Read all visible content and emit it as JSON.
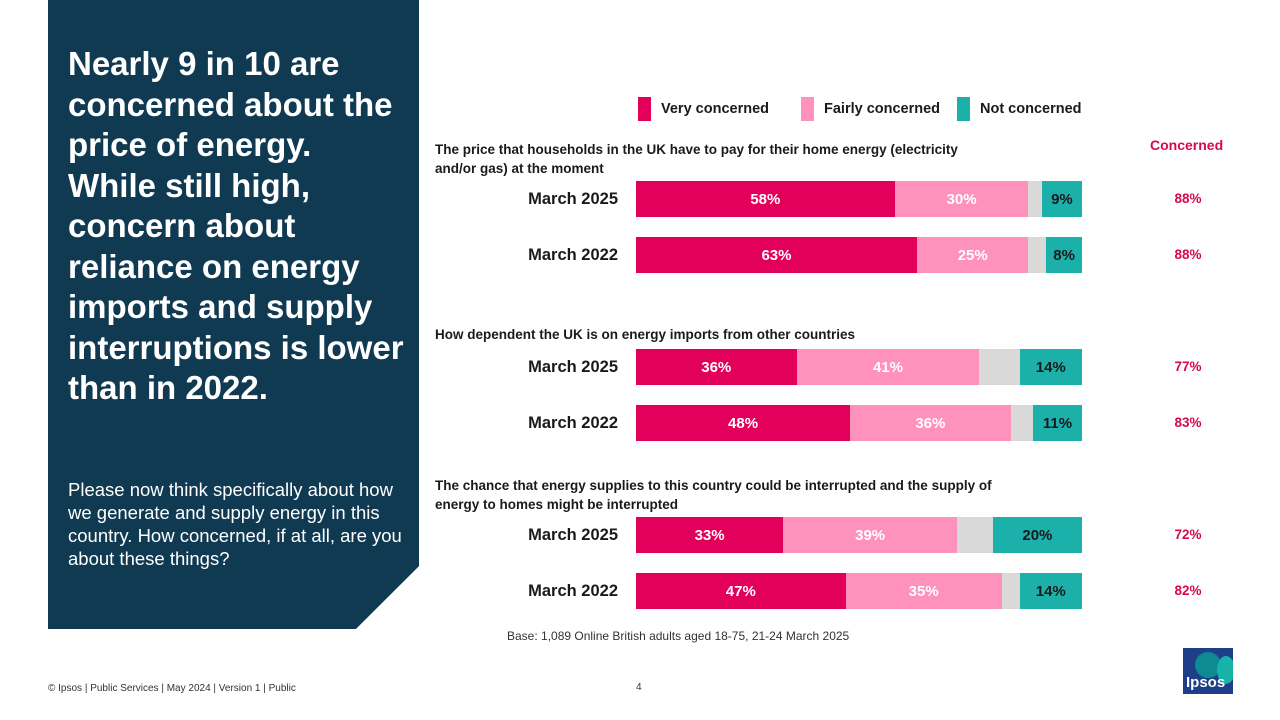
{
  "panel": {
    "headline": "Nearly 9 in 10 are concerned about the price of energy. While still high, concern about reliance on energy imports and supply interruptions is lower than in 2022.",
    "question": "Please now think specifically about how we generate and supply energy in this country. How concerned, if at all, are you about these things?"
  },
  "colors": {
    "panel": "#0f3a52",
    "very": "#e3005b",
    "fairly": "#ff91bd",
    "not_very": "#d9d9d9",
    "not": "#1cb0ab",
    "net": "#d6094e"
  },
  "chart_data": {
    "type": "bar",
    "orientation": "horizontal",
    "stacked": true,
    "legend": [
      {
        "key": "very",
        "label": "Very concerned"
      },
      {
        "key": "fairly",
        "label": "Fairly concerned"
      },
      {
        "key": "not",
        "label": "Not concerned"
      }
    ],
    "concerned_header": "Concerned",
    "items": [
      {
        "title": "The price that households in the UK have to pay for their home energy (electricity and/or gas) at the moment",
        "rows": [
          {
            "label": "March 2025",
            "very": 58,
            "very_label": "58%",
            "fairly": 30,
            "fairly_label": "30%",
            "neither": 3,
            "not": 9,
            "not_label": "9%",
            "net": "88%"
          },
          {
            "label": "March 2022",
            "very": 63,
            "very_label": "63%",
            "fairly": 25,
            "fairly_label": "25%",
            "neither": 4,
            "not": 8,
            "not_label": "8%",
            "net": "88%"
          }
        ]
      },
      {
        "title": "How dependent the UK is on energy imports from other countries",
        "rows": [
          {
            "label": "March 2025",
            "very": 36,
            "very_label": "36%",
            "fairly": 41,
            "fairly_label": "41%",
            "neither": 9,
            "not": 14,
            "not_label": "14%",
            "net": "77%"
          },
          {
            "label": "March 2022",
            "very": 48,
            "very_label": "48%",
            "fairly": 36,
            "fairly_label": "36%",
            "neither": 5,
            "not": 11,
            "not_label": "11%",
            "net": "83%"
          }
        ]
      },
      {
        "title": "The chance that energy supplies to this country could be interrupted and the supply of energy to homes might be interrupted",
        "rows": [
          {
            "label": "March 2025",
            "very": 33,
            "very_label": "33%",
            "fairly": 39,
            "fairly_label": "39%",
            "neither": 8,
            "not": 20,
            "not_label": "20%",
            "net": "72%"
          },
          {
            "label": "March 2022",
            "very": 47,
            "very_label": "47%",
            "fairly": 35,
            "fairly_label": "35%",
            "neither": 4,
            "not": 14,
            "not_label": "14%",
            "net": "82%"
          }
        ]
      }
    ]
  },
  "base_note": "Base: 1,089 Online British adults aged 18-75, 21-24 March 2025",
  "footer": "© Ipsos | Public Services | May 2024 | Version 1 | Public",
  "page_number": "4",
  "logo_text": "Ipsos"
}
